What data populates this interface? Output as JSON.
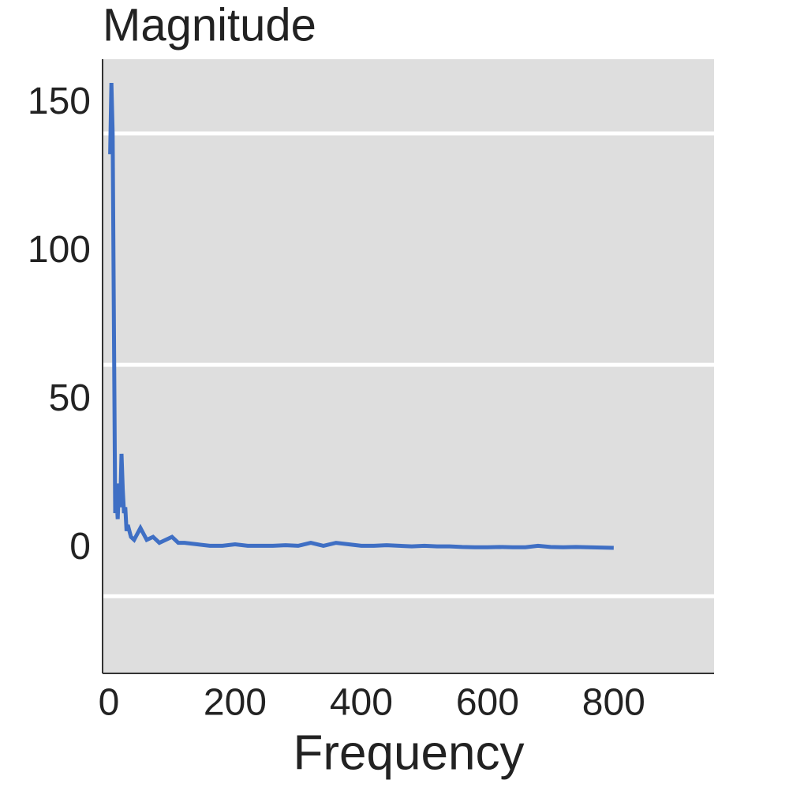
{
  "chart_data": {
    "type": "line",
    "title": "Magnitude",
    "x_label": "Frequency",
    "x": [
      2,
      4,
      6,
      8,
      10,
      12,
      14,
      16,
      18,
      20,
      22,
      24,
      26,
      28,
      30,
      35,
      40,
      45,
      50,
      60,
      70,
      80,
      90,
      100,
      110,
      120,
      140,
      160,
      180,
      200,
      220,
      240,
      260,
      280,
      300,
      320,
      340,
      360,
      380,
      400,
      420,
      440,
      460,
      480,
      500,
      520,
      540,
      560,
      580,
      600,
      620,
      640,
      660,
      680,
      700,
      720,
      740,
      760,
      780,
      800
    ],
    "series": [
      {
        "color": "#3f6fc4",
        "values": [
          133,
          157,
          140,
          75,
          12,
          18,
          10,
          22,
          14,
          32,
          20,
          12,
          14,
          6,
          8,
          4,
          3,
          5,
          7,
          3,
          4,
          2,
          3,
          4,
          2,
          2,
          1.5,
          1,
          1,
          1.5,
          1,
          1,
          1,
          1.2,
          1,
          2,
          1,
          2,
          1.5,
          1,
          1,
          1.2,
          1,
          0.8,
          1,
          0.8,
          0.8,
          0.6,
          0.5,
          0.5,
          0.6,
          0.5,
          0.5,
          1,
          0.6,
          0.5,
          0.6,
          0.5,
          0.4,
          0.3
        ]
      }
    ],
    "xlim": [
      -10,
      959
    ],
    "ylim": [
      -42,
      165
    ],
    "xticks": [
      0,
      200,
      400,
      600,
      800
    ],
    "yticks": [
      0,
      50,
      100,
      150
    ],
    "hlines": [
      140,
      62,
      -16
    ]
  }
}
